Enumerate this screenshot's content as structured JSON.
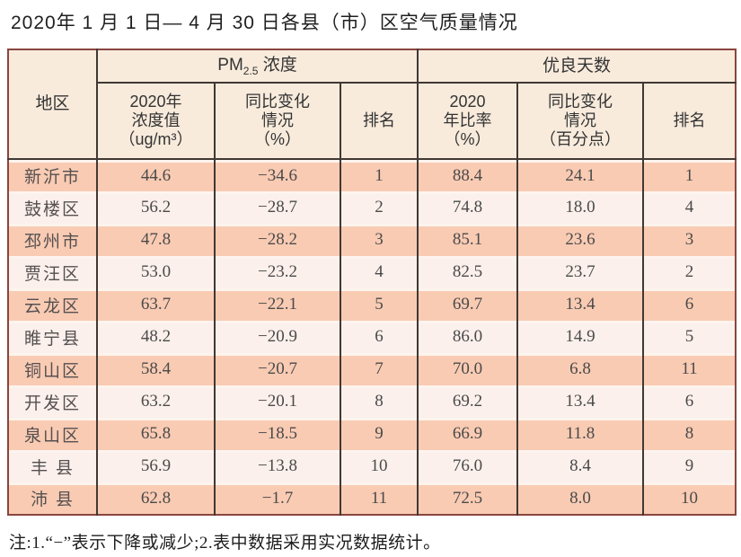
{
  "title": "2020年 1 月 1 日— 4 月 30 日各县（市）区空气质量情况",
  "note": "注:1.“−”表示下降或减少;2.表中数据采用实况数据统计。",
  "colors": {
    "outer_border": "#8a453f",
    "grid_line": "#413834",
    "header_bg": "#f8ebdc",
    "row_salmon": "#f9cbb3",
    "row_light": "#fbf0ec",
    "page_bg": "#ffffff"
  },
  "table": {
    "region_header": "地区",
    "pm_group": {
      "prefix": "PM",
      "sub": "2.5",
      "suffix": " 浓度"
    },
    "good_group": "优良天数",
    "sub_headers": {
      "pm_value": "2020年\n浓度值\n（ug/m³）",
      "pm_change": "同比变化\n情况\n（%）",
      "pm_rank": "排名",
      "good_ratio": "2020\n年比率\n（%）",
      "good_change": "同比变化\n情况\n（百分点）",
      "good_rank": "排名"
    },
    "rows": [
      [
        "新沂市",
        "44.6",
        "−34.6",
        "1",
        "88.4",
        "24.1",
        "1"
      ],
      [
        "鼓楼区",
        "56.2",
        "−28.7",
        "2",
        "74.8",
        "18.0",
        "4"
      ],
      [
        "邳州市",
        "47.8",
        "−28.2",
        "3",
        "85.1",
        "23.6",
        "3"
      ],
      [
        "贾汪区",
        "53.0",
        "−23.2",
        "4",
        "82.5",
        "23.7",
        "2"
      ],
      [
        "云龙区",
        "63.7",
        "−22.1",
        "5",
        "69.7",
        "13.4",
        "6"
      ],
      [
        "睢宁县",
        "48.2",
        "−20.9",
        "6",
        "86.0",
        "14.9",
        "5"
      ],
      [
        "铜山区",
        "58.4",
        "−20.7",
        "7",
        "70.0",
        "6.8",
        "11"
      ],
      [
        "开发区",
        "63.2",
        "−20.1",
        "8",
        "69.2",
        "13.4",
        "6"
      ],
      [
        "泉山区",
        "65.8",
        "−18.5",
        "9",
        "66.9",
        "11.8",
        "8"
      ],
      [
        "丰 县",
        "56.9",
        "−13.8",
        "10",
        "76.0",
        "8.4",
        "9"
      ],
      [
        "沛 县",
        "62.8",
        "−1.7",
        "11",
        "72.5",
        "8.0",
        "10"
      ]
    ]
  }
}
